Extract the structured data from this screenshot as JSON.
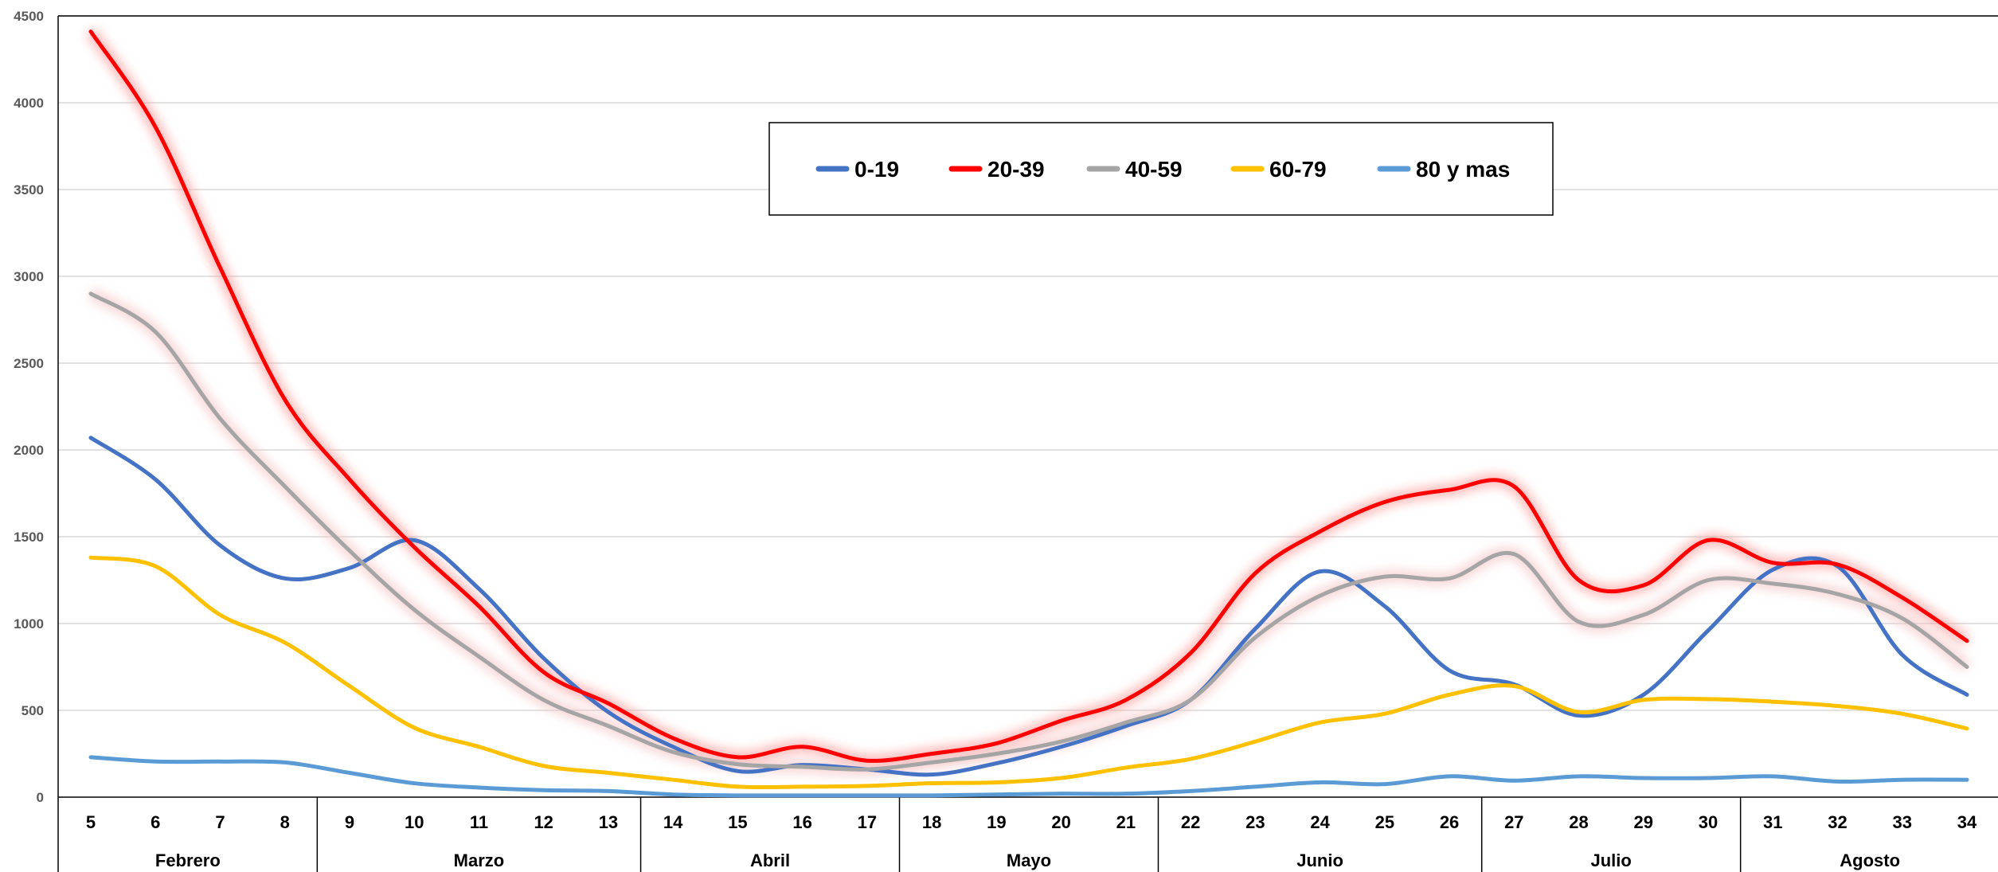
{
  "chart_data": {
    "type": "line",
    "title": "",
    "xlabel": "",
    "ylabel": "",
    "ylim": [
      0,
      4500
    ],
    "yticks": [
      0,
      500,
      1000,
      1500,
      2000,
      2500,
      3000,
      3500,
      4000,
      4500
    ],
    "grid": true,
    "legend_position": "top-center",
    "x": [
      5,
      6,
      7,
      8,
      9,
      10,
      11,
      12,
      13,
      14,
      15,
      16,
      17,
      18,
      19,
      20,
      21,
      22,
      23,
      24,
      25,
      26,
      27,
      28,
      29,
      30,
      31,
      32,
      33,
      34
    ],
    "groups": [
      {
        "label": "Febrero",
        "from": 5,
        "to": 8
      },
      {
        "label": "Marzo",
        "from": 9,
        "to": 13
      },
      {
        "label": "Abril",
        "from": 14,
        "to": 17
      },
      {
        "label": "Mayo",
        "from": 18,
        "to": 21
      },
      {
        "label": "Junio",
        "from": 22,
        "to": 26
      },
      {
        "label": "Julio",
        "from": 27,
        "to": 30
      },
      {
        "label": "Agosto",
        "from": 31,
        "to": 34
      }
    ],
    "series": [
      {
        "name": "0-19",
        "color": "#4472C4",
        "values": [
          2070,
          1830,
          1450,
          1260,
          1320,
          1480,
          1200,
          800,
          490,
          290,
          150,
          185,
          160,
          130,
          195,
          290,
          410,
          560,
          970,
          1300,
          1100,
          730,
          650,
          470,
          590,
          960,
          1310,
          1330,
          820,
          590
        ]
      },
      {
        "name": "20-39",
        "color": "#FF0000",
        "values": [
          4410,
          3860,
          3050,
          2290,
          1830,
          1440,
          1100,
          720,
          540,
          340,
          230,
          290,
          210,
          250,
          310,
          440,
          560,
          830,
          1290,
          1530,
          1700,
          1770,
          1790,
          1250,
          1220,
          1480,
          1350,
          1340,
          1150,
          900
        ]
      },
      {
        "name": "40-59",
        "color": "#A5A5A5",
        "values": [
          2900,
          2680,
          2180,
          1790,
          1420,
          1080,
          810,
          560,
          410,
          260,
          190,
          175,
          160,
          200,
          250,
          320,
          430,
          560,
          920,
          1160,
          1270,
          1260,
          1400,
          1010,
          1050,
          1250,
          1230,
          1170,
          1030,
          750
        ]
      },
      {
        "name": "60-79",
        "color": "#FFC000",
        "values": [
          1380,
          1330,
          1050,
          890,
          640,
          400,
          290,
          180,
          140,
          100,
          60,
          60,
          65,
          80,
          85,
          110,
          170,
          220,
          320,
          430,
          480,
          590,
          640,
          490,
          560,
          565,
          550,
          525,
          480,
          395
        ]
      },
      {
        "name": "80 y mas",
        "color": "#5B9BD5",
        "values": [
          230,
          205,
          205,
          200,
          140,
          80,
          55,
          40,
          35,
          15,
          10,
          10,
          10,
          10,
          15,
          20,
          20,
          35,
          60,
          85,
          75,
          120,
          95,
          120,
          110,
          110,
          120,
          90,
          100,
          100
        ]
      }
    ]
  }
}
